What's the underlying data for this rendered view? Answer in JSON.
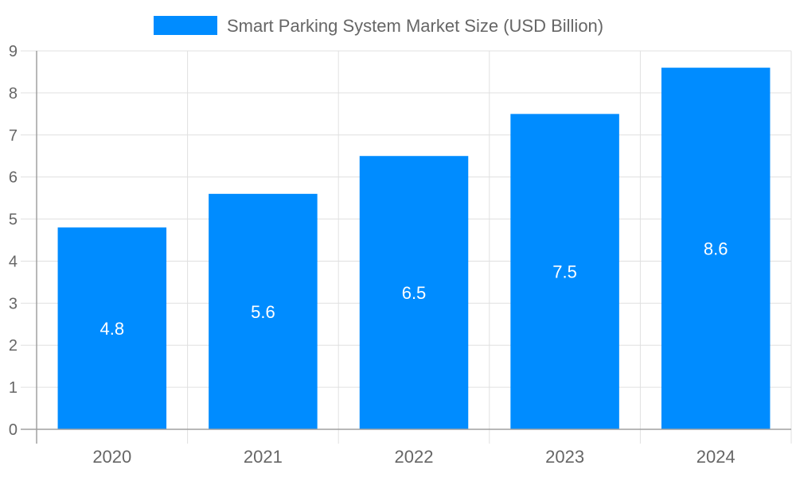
{
  "chart_data": {
    "type": "bar",
    "categories": [
      "2020",
      "2021",
      "2022",
      "2023",
      "2024"
    ],
    "series": [
      {
        "name": "Smart Parking System Market Size (USD Billion)",
        "values": [
          4.8,
          5.6,
          6.5,
          7.5,
          8.6
        ],
        "color": "#008cff"
      }
    ],
    "data_labels": [
      "4.8",
      "5.6",
      "6.5",
      "7.5",
      "8.6"
    ],
    "yticks": [
      "0",
      "1",
      "2",
      "3",
      "4",
      "5",
      "6",
      "7",
      "8",
      "9"
    ],
    "ylim": [
      0,
      9
    ],
    "grid": true,
    "legend_position": "top",
    "colors": {
      "bar": "#008cff",
      "text": "#666666",
      "grid": "#e0e0e0",
      "axis": "#a0a0a0",
      "label": "#ffffff"
    }
  }
}
